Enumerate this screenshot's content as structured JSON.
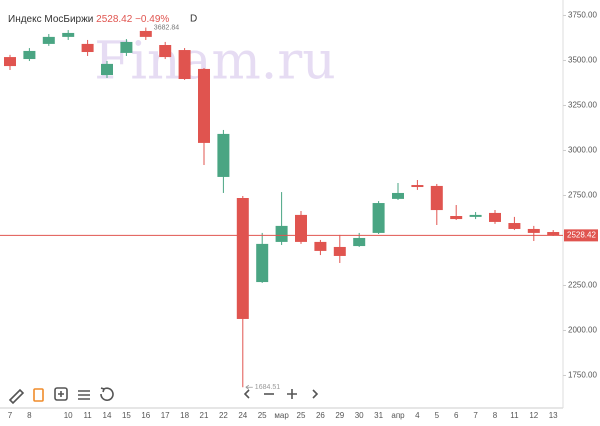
{
  "chart_data": {
    "type": "candlestick",
    "title": "Индекс МосБиржи",
    "last": 2528.42,
    "change": "−0.49%",
    "interval": "D",
    "watermark": "Finam.ru",
    "categories": [
      "7",
      "8",
      null,
      "10",
      "11",
      "14",
      "15",
      "16",
      "17",
      "18",
      "21",
      "22",
      "24",
      "25",
      "мар",
      "25",
      "26",
      "29",
      "30",
      "31",
      "апр",
      "4",
      "5",
      "6",
      "7",
      "8",
      "11",
      "12",
      "13"
    ],
    "open": [
      3519,
      3508,
      3592,
      3631,
      3592,
      3419,
      3542,
      3664,
      3586,
      3558,
      3453,
      2853,
      2736,
      2269,
      2492,
      2642,
      2492,
      2464,
      2469,
      2542,
      2731,
      2808,
      2803,
      2636,
      2631,
      2653,
      2597,
      2564,
      2547
    ],
    "high": [
      3531,
      3569,
      3647,
      3669,
      3614,
      3497,
      3619,
      3682.84,
      3603,
      3569,
      3458,
      3114,
      2747,
      2542,
      2769,
      2664,
      2503,
      2531,
      2542,
      2719,
      2819,
      2836,
      2814,
      2697,
      2658,
      2669,
      2631,
      2581,
      2558
    ],
    "low": [
      3447,
      3497,
      3581,
      3614,
      3525,
      3403,
      3525,
      3614,
      3508,
      3392,
      2919,
      2764,
      1684.51,
      2264,
      2475,
      2481,
      2419,
      2375,
      2464,
      2536,
      2725,
      2781,
      2586,
      2614,
      2619,
      2592,
      2558,
      2497,
      2525
    ],
    "close": [
      3469,
      3553,
      3631,
      3653,
      3547,
      3481,
      3603,
      3631,
      3519,
      3397,
      3042,
      3092,
      2064,
      2481,
      2581,
      2492,
      2442,
      2414,
      2514,
      2708,
      2764,
      2797,
      2669,
      2619,
      2642,
      2603,
      2564,
      2542,
      2528.42
    ],
    "up_color": "#4aa583",
    "down_color": "#e0544f",
    "last_color": "#e0544f",
    "ylim": [
      1586,
      3836
    ],
    "yticks": [
      {
        "value": 1750,
        "label": "1750.00"
      },
      {
        "value": 2000,
        "label": "2000.00"
      },
      {
        "value": 2250,
        "label": "2250.00"
      },
      {
        "value": 2750,
        "label": "2750.00"
      },
      {
        "value": 3000,
        "label": "3000.00"
      },
      {
        "value": 3250,
        "label": "3250.00"
      },
      {
        "value": 3500,
        "label": "3500.00"
      },
      {
        "value": 3750,
        "label": "3750.00"
      }
    ],
    "grid": false
  }
}
